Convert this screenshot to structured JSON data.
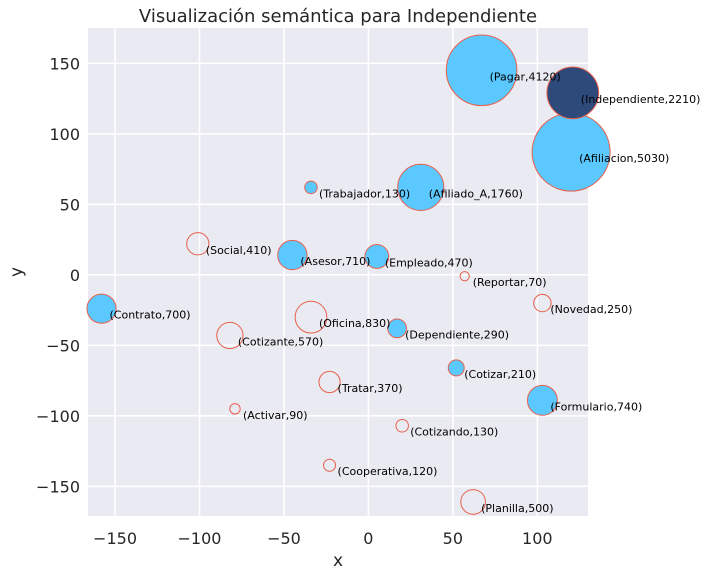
{
  "chart_data": {
    "type": "scatter",
    "title": "Visualización semántica para Independiente",
    "xlabel": "x",
    "ylabel": "y",
    "xlim": [
      -166,
      130
    ],
    "ylim": [
      -171,
      175
    ],
    "x_ticks": [
      -150,
      -100,
      -50,
      0,
      50,
      100
    ],
    "y_ticks": [
      -150,
      -100,
      -50,
      0,
      50,
      100,
      150
    ],
    "x_tick_labels": [
      "−150",
      "−100",
      "−50",
      "0",
      "50",
      "100"
    ],
    "y_tick_labels": [
      "−150",
      "−100",
      "−50",
      "0",
      "50",
      "100",
      "150"
    ],
    "grid": true,
    "colors": {
      "background": "#eaeaf2",
      "grid": "#ffffff",
      "filled": "#5bc8ff",
      "highlight": "#2d4a7a",
      "edge": "#e8604c"
    },
    "points": [
      {
        "label": "(Pagar,4120)",
        "x": 67,
        "y": 145,
        "weight": 4120,
        "style": "filled"
      },
      {
        "label": "(Independiente,2210)",
        "x": 121,
        "y": 129,
        "weight": 2210,
        "style": "highlight"
      },
      {
        "label": "(Afiliacion,5030)",
        "x": 120,
        "y": 87,
        "weight": 5030,
        "style": "filled"
      },
      {
        "label": "(Trabajador,130)",
        "x": -34,
        "y": 62,
        "weight": 130,
        "style": "filled"
      },
      {
        "label": "(Afiliado_A,1760)",
        "x": 31,
        "y": 62,
        "weight": 1760,
        "style": "filled"
      },
      {
        "label": "(Social,410)",
        "x": -101,
        "y": 22,
        "weight": 410,
        "style": "hollow"
      },
      {
        "label": "(Asesor,710)",
        "x": -45,
        "y": 14,
        "weight": 710,
        "style": "filled"
      },
      {
        "label": "(Empleado,470)",
        "x": 5,
        "y": 13,
        "weight": 470,
        "style": "filled"
      },
      {
        "label": "(Reportar,70)",
        "x": 57,
        "y": -1,
        "weight": 70,
        "style": "hollow"
      },
      {
        "label": "(Contrato,700)",
        "x": -158,
        "y": -24,
        "weight": 700,
        "style": "filled"
      },
      {
        "label": "(Novedad,250)",
        "x": 103,
        "y": -20,
        "weight": 250,
        "style": "hollow"
      },
      {
        "label": "(Oficina,830)",
        "x": -34,
        "y": -30,
        "weight": 830,
        "style": "hollow"
      },
      {
        "label": "(Dependiente,290)",
        "x": 17,
        "y": -38,
        "weight": 290,
        "style": "filled"
      },
      {
        "label": "(Cotizante,570)",
        "x": -82,
        "y": -43,
        "weight": 570,
        "style": "hollow"
      },
      {
        "label": "(Cotizar,210)",
        "x": 52,
        "y": -66,
        "weight": 210,
        "style": "filled"
      },
      {
        "label": "(Tratar,370)",
        "x": -23,
        "y": -76,
        "weight": 370,
        "style": "hollow"
      },
      {
        "label": "(Formulario,740)",
        "x": 103,
        "y": -89,
        "weight": 740,
        "style": "filled"
      },
      {
        "label": "(Activar,90)",
        "x": -79,
        "y": -95,
        "weight": 90,
        "style": "hollow"
      },
      {
        "label": "(Cotizando,130)",
        "x": 20,
        "y": -107,
        "weight": 130,
        "style": "hollow"
      },
      {
        "label": "(Cooperativa,120)",
        "x": -23,
        "y": -135,
        "weight": 120,
        "style": "hollow"
      },
      {
        "label": "(Planilla,500)",
        "x": 62,
        "y": -161,
        "weight": 500,
        "style": "hollow"
      }
    ]
  }
}
